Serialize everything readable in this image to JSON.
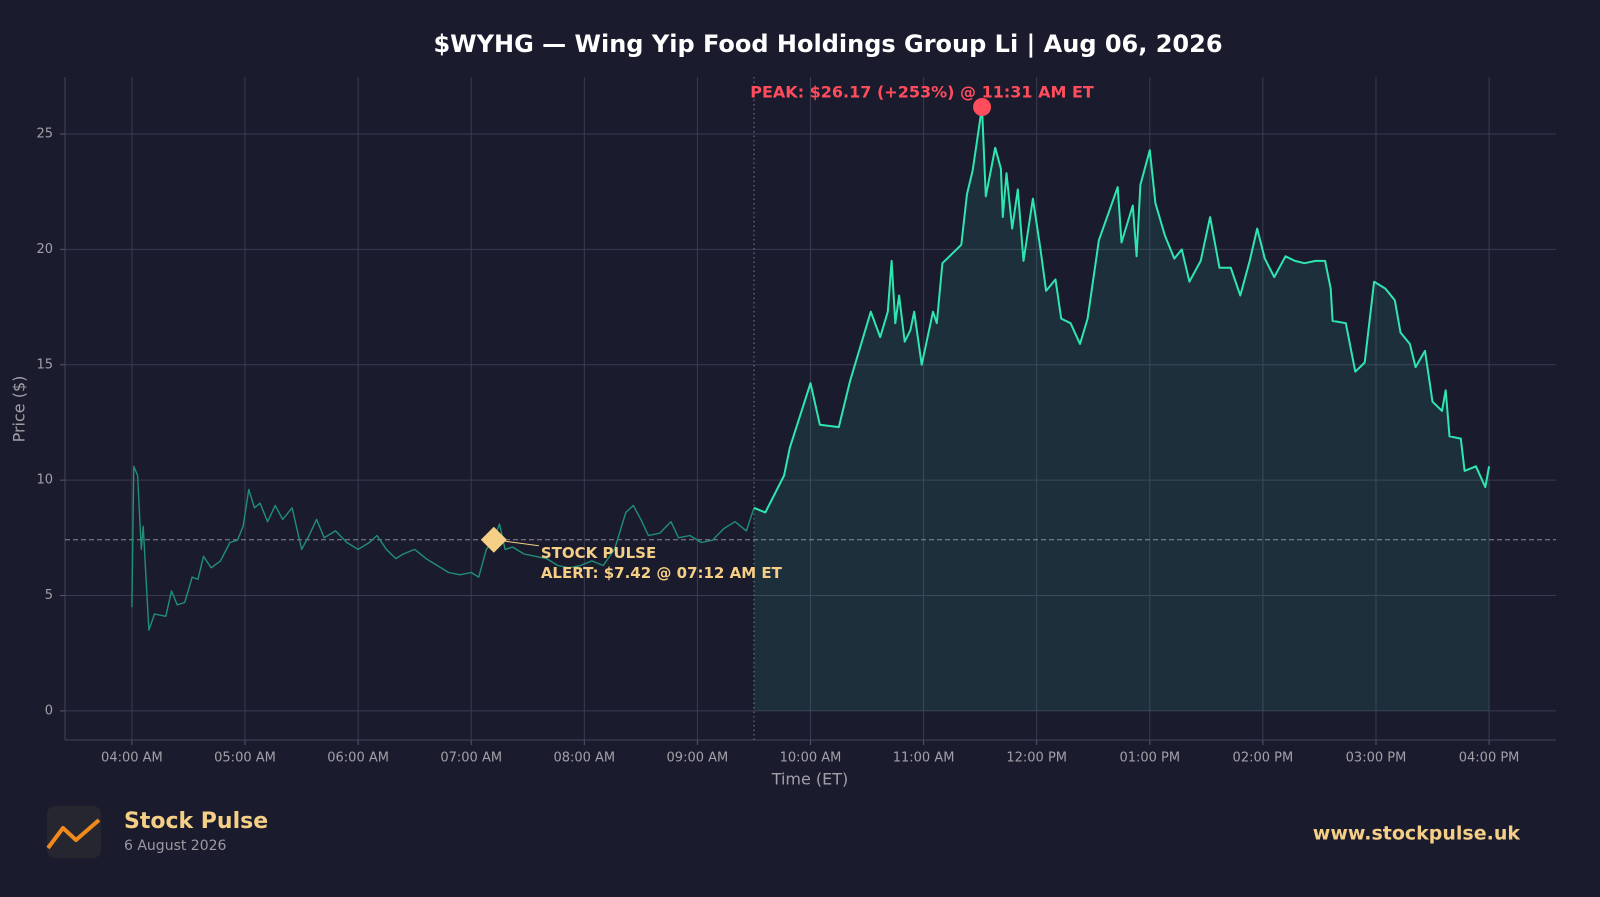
{
  "chart_data": {
    "type": "line",
    "title": "$WYHG — Wing Yip Food Holdings Group Li  |  Aug 06, 2026",
    "x_label": "Time (ET)",
    "y_label": "Price ($)",
    "xlim": [
      204.5,
      995.5
    ],
    "ylim": [
      -1.26,
      27.47
    ],
    "xticks": [
      {
        "value": 240,
        "label": "04:00 AM"
      },
      {
        "value": 300,
        "label": "05:00 AM"
      },
      {
        "value": 360,
        "label": "06:00 AM"
      },
      {
        "value": 420,
        "label": "07:00 AM"
      },
      {
        "value": 480,
        "label": "08:00 AM"
      },
      {
        "value": 540,
        "label": "09:00 AM"
      },
      {
        "value": 600,
        "label": "10:00 AM"
      },
      {
        "value": 660,
        "label": "11:00 AM"
      },
      {
        "value": 720,
        "label": "12:00 PM"
      },
      {
        "value": 780,
        "label": "01:00 PM"
      },
      {
        "value": 840,
        "label": "02:00 PM"
      },
      {
        "value": 900,
        "label": "03:00 PM"
      },
      {
        "value": 960,
        "label": "04:00 PM"
      }
    ],
    "yticks": [
      0,
      5,
      10,
      15,
      20,
      25
    ],
    "grid": true,
    "market_open": 570,
    "series": [
      {
        "color": "#1f8f75",
        "fill": false,
        "x": [
          240,
          241,
          243,
          245,
          246,
          249,
          252,
          258,
          261,
          264,
          268,
          272,
          275,
          278,
          282,
          287,
          292,
          296,
          299,
          302,
          305,
          308,
          312,
          316,
          320,
          325,
          330,
          334,
          338,
          342,
          348,
          354,
          360,
          366,
          370,
          375,
          380,
          384,
          390,
          396,
          402,
          408,
          414,
          420,
          424,
          428,
          432,
          435,
          438,
          442,
          448,
          454,
          460,
          466,
          472,
          478,
          484,
          490,
          496,
          502,
          506,
          510,
          514,
          520,
          526,
          530,
          536,
          542,
          548,
          554,
          560,
          566,
          570
        ],
        "values": [
          4.5,
          10.6,
          10.2,
          7.0,
          8.0,
          3.5,
          4.2,
          4.1,
          5.2,
          4.6,
          4.7,
          5.8,
          5.7,
          6.7,
          6.2,
          6.5,
          7.3,
          7.4,
          8.0,
          9.6,
          8.8,
          9.0,
          8.2,
          8.9,
          8.3,
          8.8,
          7.0,
          7.6,
          8.3,
          7.5,
          7.8,
          7.3,
          7.0,
          7.3,
          7.6,
          7.0,
          6.6,
          6.8,
          7.0,
          6.6,
          6.3,
          6.0,
          5.9,
          6.0,
          5.8,
          7.0,
          7.42,
          8.1,
          7.0,
          7.1,
          6.8,
          6.7,
          6.6,
          6.3,
          6.2,
          6.3,
          6.5,
          6.3,
          7.0,
          8.6,
          8.9,
          8.3,
          7.6,
          7.7,
          8.2,
          7.5,
          7.6,
          7.3,
          7.4,
          7.9,
          8.2,
          7.8,
          8.8
        ]
      },
      {
        "color": "#2ee6b0",
        "fill": true,
        "x": [
          570,
          576,
          586,
          589,
          600,
          605,
          615,
          621,
          632,
          637,
          641,
          643,
          645,
          647,
          650,
          653,
          655,
          659,
          665,
          667,
          670,
          680,
          683,
          686,
          691,
          693,
          698,
          701,
          702,
          704,
          707,
          710,
          713,
          718,
          722,
          725,
          730,
          733,
          738,
          743,
          747,
          753,
          763,
          765,
          771,
          773,
          775,
          780,
          783,
          788,
          793,
          797,
          801,
          807,
          812,
          817,
          823,
          828,
          833,
          837,
          841,
          846,
          852,
          857,
          862,
          868,
          873,
          876,
          877,
          884,
          889,
          894,
          899,
          905,
          910,
          913,
          918,
          921,
          926,
          930,
          935,
          937,
          939,
          945,
          947,
          953,
          958,
          960
        ],
        "values": [
          8.8,
          8.6,
          10.2,
          11.4,
          14.2,
          12.4,
          12.3,
          14.3,
          17.3,
          16.2,
          17.3,
          19.5,
          16.8,
          18.0,
          16.0,
          16.5,
          17.3,
          15.0,
          17.3,
          16.8,
          19.4,
          20.2,
          22.4,
          23.4,
          26.17,
          22.3,
          24.4,
          23.5,
          21.4,
          23.3,
          20.9,
          22.6,
          19.5,
          22.2,
          20.0,
          18.2,
          18.7,
          17.0,
          16.8,
          15.9,
          17.0,
          20.4,
          22.7,
          20.3,
          21.9,
          19.7,
          22.8,
          24.3,
          22.0,
          20.6,
          19.6,
          20.0,
          18.6,
          19.5,
          21.4,
          19.2,
          19.2,
          18.0,
          19.5,
          20.9,
          19.6,
          18.8,
          19.7,
          19.5,
          19.4,
          19.5,
          19.5,
          18.3,
          16.9,
          16.8,
          14.7,
          15.1,
          18.6,
          18.3,
          17.8,
          16.4,
          15.9,
          14.9,
          15.6,
          13.4,
          13.0,
          13.9,
          11.9,
          11.8,
          10.4,
          10.6,
          9.7,
          10.6
        ]
      }
    ],
    "peak": {
      "x": 691,
      "y": 26.17,
      "label": "PEAK: $26.17 (+253%) @ 11:31 AM ET"
    },
    "alert": {
      "x": 432,
      "y": 7.42,
      "lines": [
        "STOCK PULSE",
        "ALERT: $7.42 @ 07:12 AM ET"
      ]
    }
  },
  "footer": {
    "brand": "Stock Pulse",
    "date": "6 August 2026",
    "url": "www.stockpulse.uk"
  }
}
